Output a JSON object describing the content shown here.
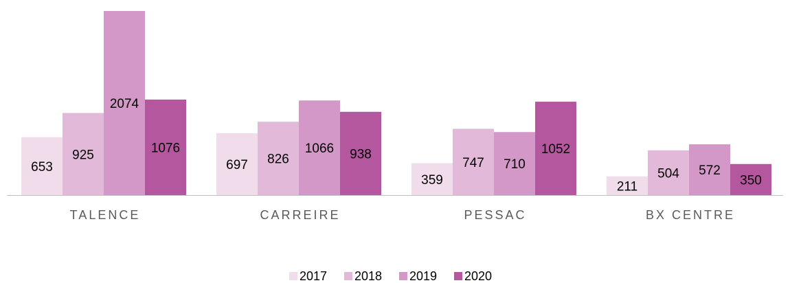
{
  "chart_data": {
    "type": "bar",
    "categories": [
      "TALENCE",
      "CARREIRE",
      "PESSAC",
      "BX CENTRE"
    ],
    "series": [
      {
        "name": "2017",
        "color": "#f0dcea",
        "values": [
          653,
          697,
          359,
          211
        ]
      },
      {
        "name": "2018",
        "color": "#e3b9d9",
        "values": [
          925,
          826,
          747,
          504
        ]
      },
      {
        "name": "2019",
        "color": "#d398c7",
        "values": [
          2074,
          1066,
          710,
          572
        ]
      },
      {
        "name": "2020",
        "color": "#b5579f",
        "values": [
          1076,
          938,
          1052,
          350
        ]
      }
    ],
    "legend": "bottom"
  }
}
